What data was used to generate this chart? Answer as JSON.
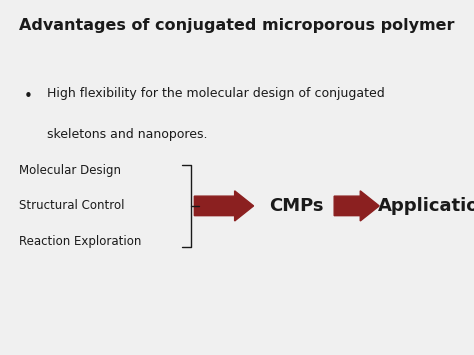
{
  "title": "Advantages of conjugated microporous polymer",
  "bullet_line1": "High flexibility for the molecular design of conjugated",
  "bullet_line2": "skeletons and nanopores.",
  "left_labels": [
    "Molecular Design",
    "Structural Control",
    "Reaction Exploration"
  ],
  "center_label": "CMPs",
  "right_label": "Applications",
  "arrow_color": "#8B2020",
  "text_color": "#1a1a1a",
  "bg_color": "#f0f0f0",
  "title_fontsize": 11.5,
  "body_fontsize": 9,
  "label_fontsize": 8.5,
  "cmps_fontsize": 13,
  "app_fontsize": 13
}
